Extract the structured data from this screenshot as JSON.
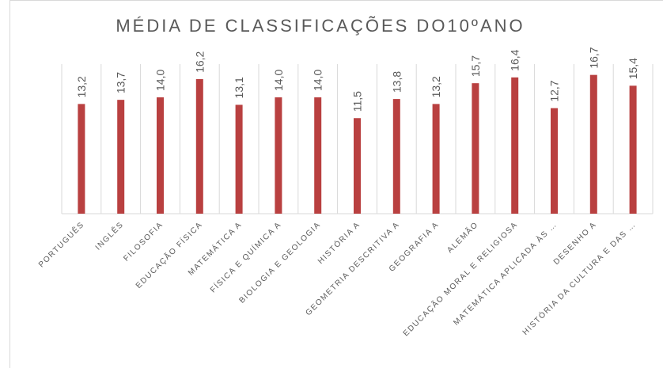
{
  "chart_data": {
    "type": "bar",
    "title": "MÉDIA DE CLASSIFICAÇÕES DO10ºANO",
    "categories": [
      "PORTUGUÊS",
      "INGLÊS",
      "FILOSOFIA",
      "EDUCAÇÃO FÍSICA",
      "MATEMÁTICA A",
      "FÍSICA E QUÍMICA A",
      "BIOLOGIA E GEOLOGIA",
      "HISTÓRIA A",
      "GEOMETRIA DESCRITIVA A",
      "GEOGRAFIA A",
      "ALEMÃO",
      "EDUCAÇÃO MORAL E RELIGIOSA",
      "MATEMÁTICA APLICADA ÀS …",
      "DESENHO A",
      "HISTÓRIA DA CULTURA E DAS …"
    ],
    "values": [
      13.2,
      13.7,
      14.0,
      16.2,
      13.1,
      14.0,
      14.0,
      11.5,
      13.8,
      13.2,
      15.7,
      16.4,
      12.7,
      16.7,
      15.4
    ],
    "value_labels": [
      "13,2",
      "13,7",
      "14,0",
      "16,2",
      "13,1",
      "14,0",
      "14,0",
      "11,5",
      "13,8",
      "13,2",
      "15,7",
      "16,4",
      "12,7",
      "16,7",
      "15,4"
    ],
    "color": "#b94040",
    "ylim": [
      0,
      18
    ]
  }
}
